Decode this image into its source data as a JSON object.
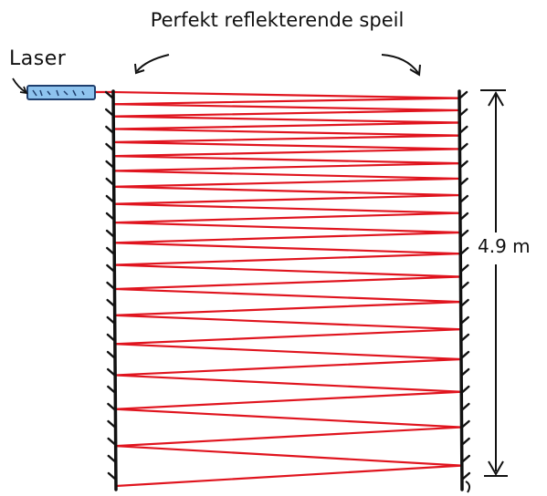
{
  "title": "Perfekt reflekterende speil",
  "laser_label": "Laser",
  "distance_label": "4.9 m",
  "colors": {
    "beam": "#e0141e",
    "mirror": "#111111",
    "hatch": "#111111",
    "laser_body": "#8ec3ee",
    "laser_outline": "#1f3f6e",
    "text": "#111111"
  },
  "icons": {
    "laser": "laser-device-icon",
    "arrow": "curved-arrow-icon",
    "dimension": "dimension-arrow-icon"
  }
}
